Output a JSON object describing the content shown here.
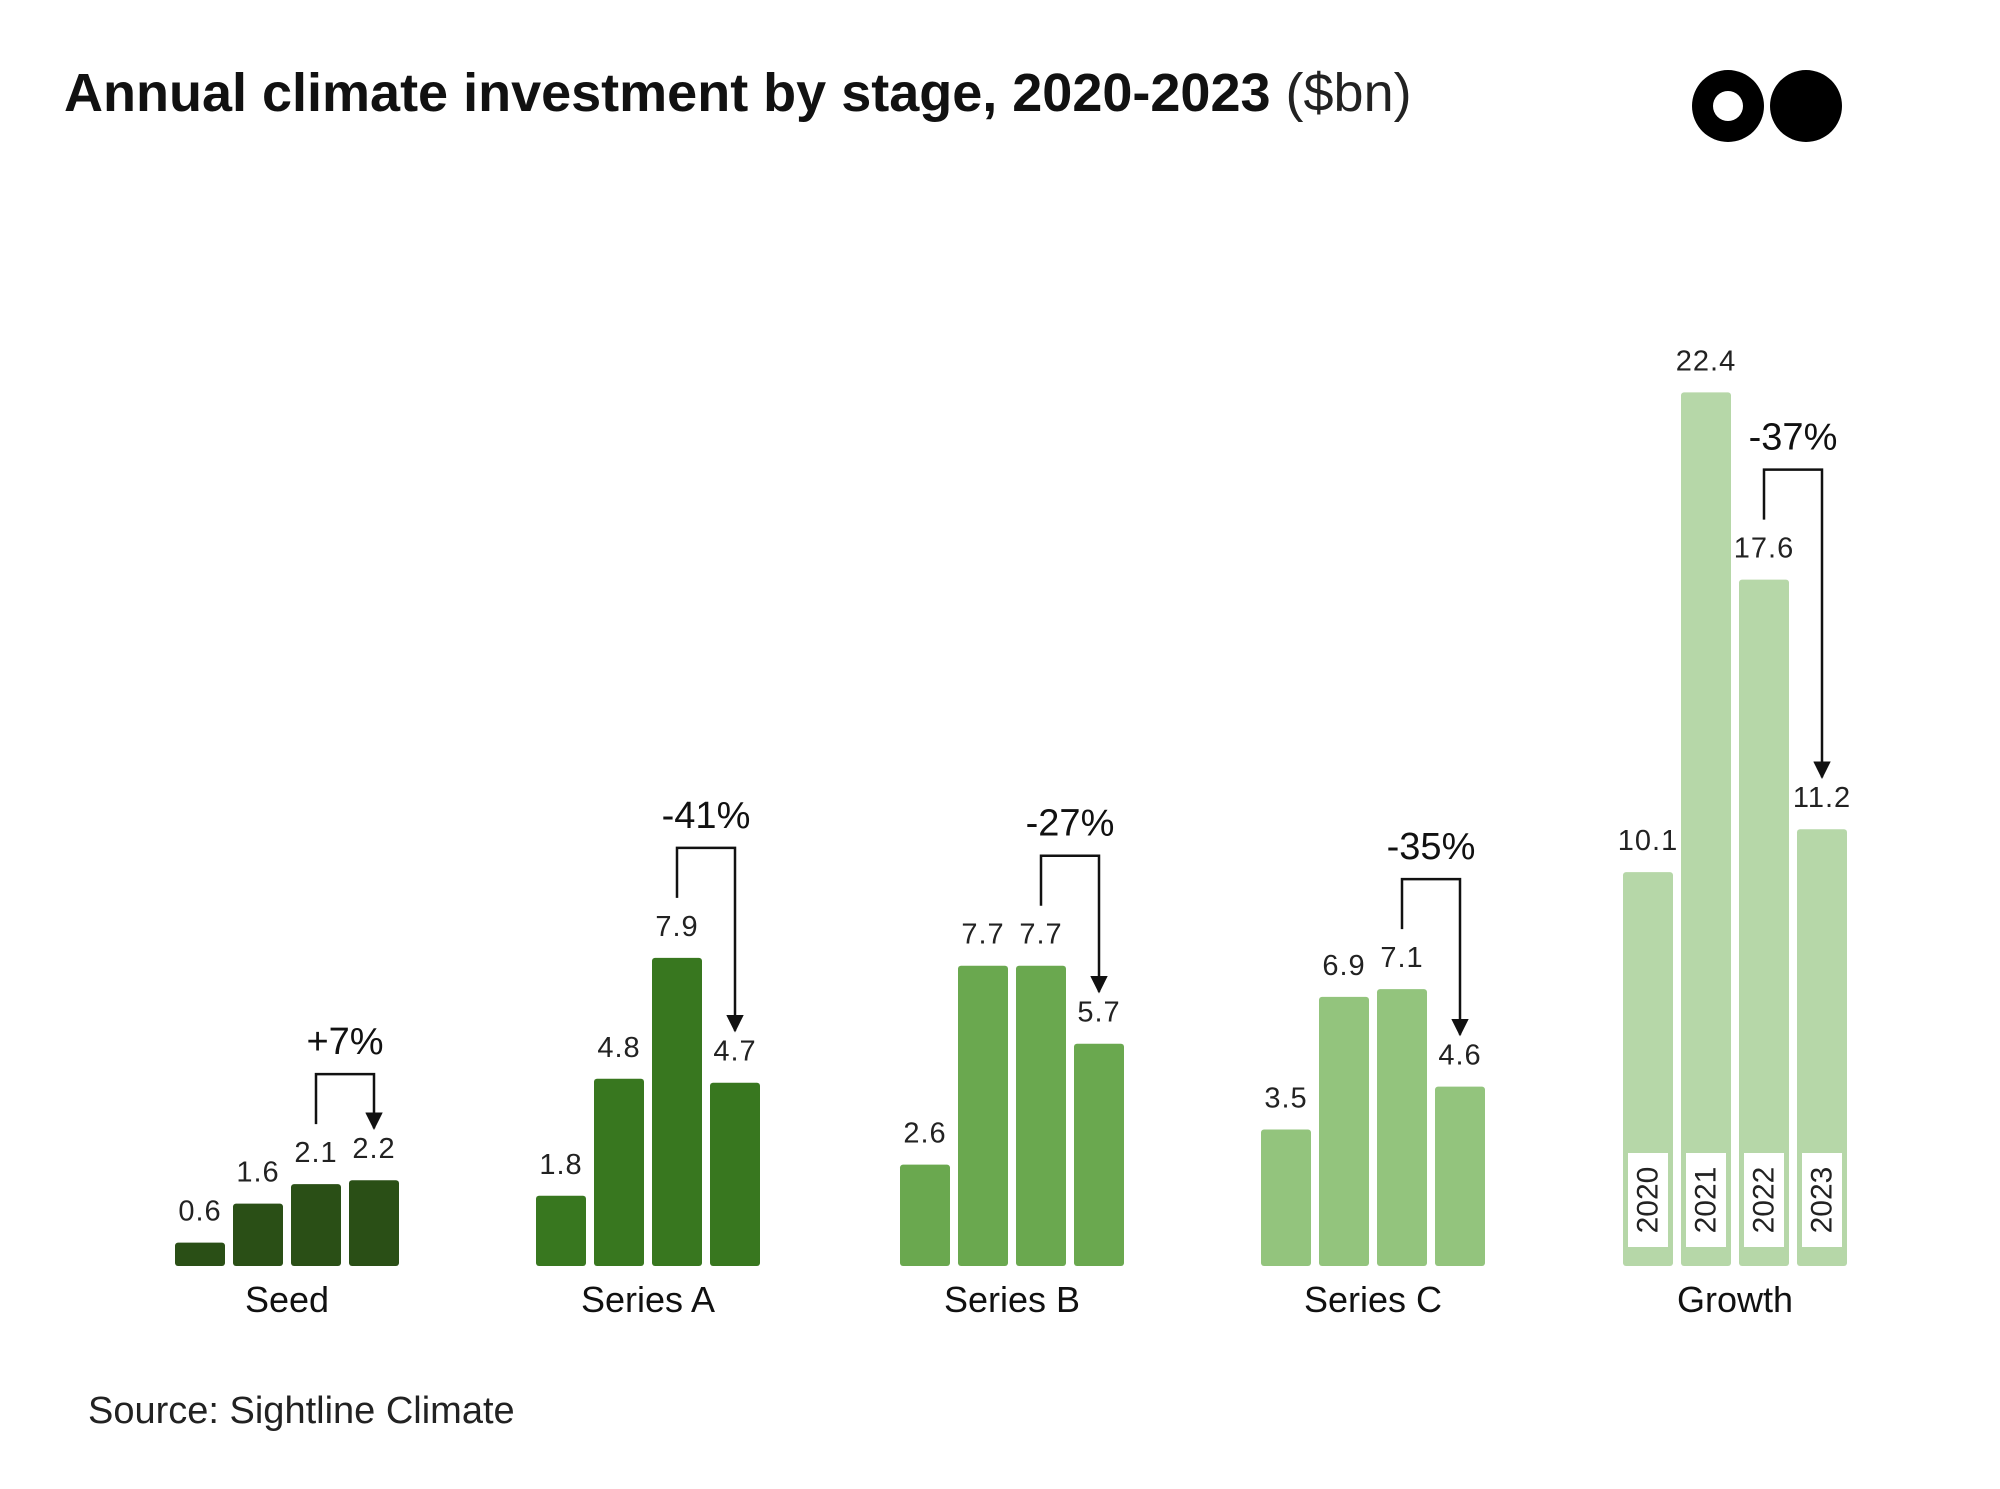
{
  "title": {
    "main": "Annual climate investment by stage, 2020-2023",
    "unit": "($bn)"
  },
  "source": "Source: Sightline Climate",
  "logo": {
    "icon": "two-dots-logo-icon",
    "color": "#000000"
  },
  "chart_data": {
    "type": "bar",
    "title": "Annual climate investment by stage, 2020-2023 ($bn)",
    "xlabel": "",
    "ylabel": "",
    "ylim": [
      0,
      24
    ],
    "grid": false,
    "legend": "none",
    "years": [
      "2020",
      "2021",
      "2022",
      "2023"
    ],
    "groups": [
      {
        "name": "Seed",
        "values": [
          0.6,
          1.6,
          2.1,
          2.2
        ],
        "value_labels": [
          "0.6",
          "1.6",
          "2.1",
          "2.2"
        ],
        "color": "#2a4f16",
        "change": "+7%"
      },
      {
        "name": "Series A",
        "values": [
          1.8,
          4.8,
          7.9,
          4.7
        ],
        "value_labels": [
          "1.8",
          "4.8",
          "7.9",
          "4.7"
        ],
        "color": "#38771f",
        "change": "-41%"
      },
      {
        "name": "Series B",
        "values": [
          2.6,
          7.7,
          7.7,
          5.7
        ],
        "value_labels": [
          "2.6",
          "7.7",
          "7.7",
          "5.7"
        ],
        "color": "#6aa84f",
        "change": "-27%"
      },
      {
        "name": "Series C",
        "values": [
          3.5,
          6.9,
          7.1,
          4.6
        ],
        "value_labels": [
          "3.5",
          "6.9",
          "7.1",
          "4.6"
        ],
        "color": "#93c47d",
        "change": "-35%"
      },
      {
        "name": "Growth",
        "values": [
          10.1,
          22.4,
          17.6,
          11.2
        ],
        "value_labels": [
          "10.1",
          "22.4",
          "17.6",
          "11.2"
        ],
        "color": "#b6d7a8",
        "change": "-37%"
      }
    ]
  }
}
